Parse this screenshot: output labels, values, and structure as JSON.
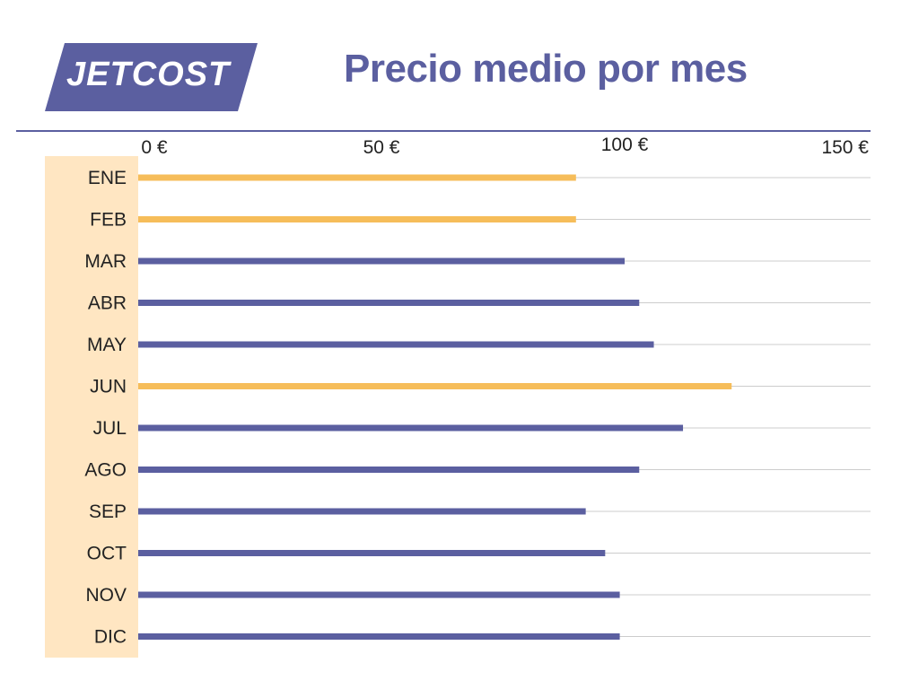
{
  "brand": {
    "logo_text": "JETCOST"
  },
  "colors": {
    "accent": "#5b5fa0",
    "highlight": "#f6bd5a",
    "label_band": "#ffe6c2",
    "grid": "#cccccc"
  },
  "chart_data": {
    "type": "bar",
    "orientation": "horizontal",
    "title": "Precio medio por mes",
    "xlabel": "",
    "ylabel": "",
    "xlim": [
      0,
      150
    ],
    "x_ticks": [
      0,
      50,
      100,
      150
    ],
    "x_tick_labels": [
      "0 €",
      "50 €",
      "100 €",
      "150 €"
    ],
    "tick_position": "top",
    "grid": true,
    "categories": [
      "ENE",
      "FEB",
      "MAR",
      "ABR",
      "MAY",
      "JUN",
      "JUL",
      "AGO",
      "SEP",
      "OCT",
      "NOV",
      "DIC"
    ],
    "values": [
      90,
      90,
      100,
      103,
      106,
      122,
      112,
      103,
      92,
      96,
      99,
      99
    ],
    "highlighted": [
      true,
      true,
      false,
      false,
      false,
      true,
      false,
      false,
      false,
      false,
      false,
      false
    ]
  }
}
